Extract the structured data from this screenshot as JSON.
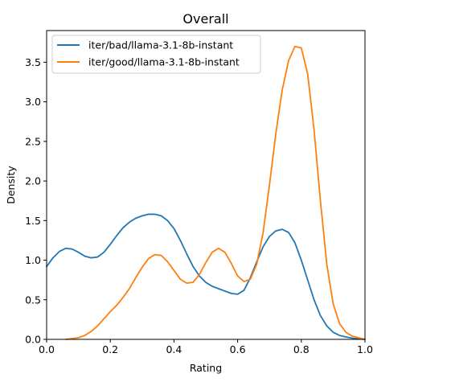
{
  "chart_data": {
    "type": "line",
    "title": "Overall",
    "xlabel": "Rating",
    "ylabel": "Density",
    "xlim": [
      0,
      1
    ],
    "ylim": [
      0,
      3.9
    ],
    "grid": false,
    "legend_position": "top-left",
    "x_ticks": [
      "0.0",
      "0.2",
      "0.4",
      "0.6",
      "0.8",
      "1.0"
    ],
    "y_ticks": [
      "0.0",
      "0.5",
      "1.0",
      "1.5",
      "2.0",
      "2.5",
      "3.0",
      "3.5"
    ],
    "series": [
      {
        "name": "iter/bad/llama-3.1-8b-instant",
        "color": "#1f77b4",
        "points": [
          [
            0.0,
            0.92
          ],
          [
            0.02,
            1.03
          ],
          [
            0.04,
            1.11
          ],
          [
            0.06,
            1.15
          ],
          [
            0.08,
            1.14
          ],
          [
            0.1,
            1.1
          ],
          [
            0.12,
            1.05
          ],
          [
            0.14,
            1.03
          ],
          [
            0.16,
            1.04
          ],
          [
            0.18,
            1.1
          ],
          [
            0.2,
            1.2
          ],
          [
            0.22,
            1.31
          ],
          [
            0.24,
            1.41
          ],
          [
            0.26,
            1.48
          ],
          [
            0.28,
            1.53
          ],
          [
            0.3,
            1.56
          ],
          [
            0.32,
            1.58
          ],
          [
            0.34,
            1.58
          ],
          [
            0.36,
            1.56
          ],
          [
            0.38,
            1.5
          ],
          [
            0.4,
            1.4
          ],
          [
            0.42,
            1.25
          ],
          [
            0.44,
            1.08
          ],
          [
            0.46,
            0.92
          ],
          [
            0.48,
            0.8
          ],
          [
            0.5,
            0.72
          ],
          [
            0.52,
            0.67
          ],
          [
            0.54,
            0.64
          ],
          [
            0.56,
            0.61
          ],
          [
            0.58,
            0.58
          ],
          [
            0.6,
            0.57
          ],
          [
            0.62,
            0.62
          ],
          [
            0.64,
            0.78
          ],
          [
            0.66,
            0.98
          ],
          [
            0.68,
            1.17
          ],
          [
            0.7,
            1.3
          ],
          [
            0.72,
            1.37
          ],
          [
            0.74,
            1.39
          ],
          [
            0.76,
            1.35
          ],
          [
            0.78,
            1.22
          ],
          [
            0.8,
            1.0
          ],
          [
            0.82,
            0.75
          ],
          [
            0.84,
            0.5
          ],
          [
            0.86,
            0.3
          ],
          [
            0.88,
            0.17
          ],
          [
            0.9,
            0.09
          ],
          [
            0.92,
            0.05
          ],
          [
            0.94,
            0.03
          ],
          [
            0.96,
            0.015
          ],
          [
            0.98,
            0.006
          ],
          [
            1.0,
            0.0
          ]
        ]
      },
      {
        "name": "iter/good/llama-3.1-8b-instant",
        "color": "#ff7f0e",
        "points": [
          [
            0.06,
            0.0
          ],
          [
            0.08,
            0.01
          ],
          [
            0.1,
            0.02
          ],
          [
            0.12,
            0.05
          ],
          [
            0.14,
            0.1
          ],
          [
            0.16,
            0.17
          ],
          [
            0.18,
            0.26
          ],
          [
            0.2,
            0.35
          ],
          [
            0.22,
            0.43
          ],
          [
            0.24,
            0.53
          ],
          [
            0.26,
            0.64
          ],
          [
            0.28,
            0.78
          ],
          [
            0.3,
            0.91
          ],
          [
            0.32,
            1.02
          ],
          [
            0.34,
            1.07
          ],
          [
            0.36,
            1.06
          ],
          [
            0.38,
            0.98
          ],
          [
            0.4,
            0.87
          ],
          [
            0.42,
            0.76
          ],
          [
            0.44,
            0.71
          ],
          [
            0.46,
            0.72
          ],
          [
            0.48,
            0.82
          ],
          [
            0.5,
            0.97
          ],
          [
            0.52,
            1.1
          ],
          [
            0.54,
            1.15
          ],
          [
            0.56,
            1.1
          ],
          [
            0.58,
            0.96
          ],
          [
            0.6,
            0.8
          ],
          [
            0.62,
            0.73
          ],
          [
            0.64,
            0.76
          ],
          [
            0.66,
            0.95
          ],
          [
            0.68,
            1.35
          ],
          [
            0.7,
            1.95
          ],
          [
            0.72,
            2.6
          ],
          [
            0.74,
            3.15
          ],
          [
            0.76,
            3.52
          ],
          [
            0.78,
            3.7
          ],
          [
            0.8,
            3.68
          ],
          [
            0.82,
            3.35
          ],
          [
            0.84,
            2.65
          ],
          [
            0.86,
            1.75
          ],
          [
            0.88,
            0.95
          ],
          [
            0.9,
            0.45
          ],
          [
            0.92,
            0.2
          ],
          [
            0.94,
            0.09
          ],
          [
            0.96,
            0.04
          ],
          [
            0.98,
            0.02
          ],
          [
            1.0,
            0.0
          ]
        ]
      }
    ]
  }
}
